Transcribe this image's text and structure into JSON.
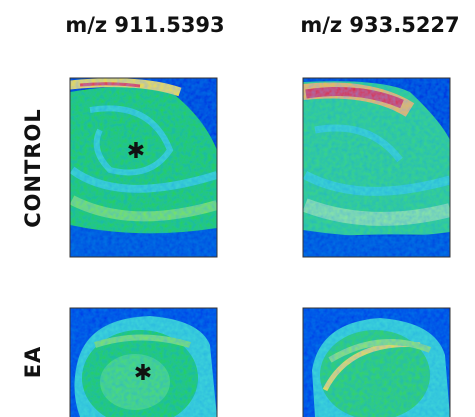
{
  "columns": [
    {
      "label": "m/z 911.5393"
    },
    {
      "label": "m/z 933.5227"
    }
  ],
  "rows": [
    {
      "label": "CONTROL"
    },
    {
      "label": "EA"
    }
  ],
  "markers": [
    {
      "label": "✱"
    },
    {
      "label": "✱"
    }
  ]
}
